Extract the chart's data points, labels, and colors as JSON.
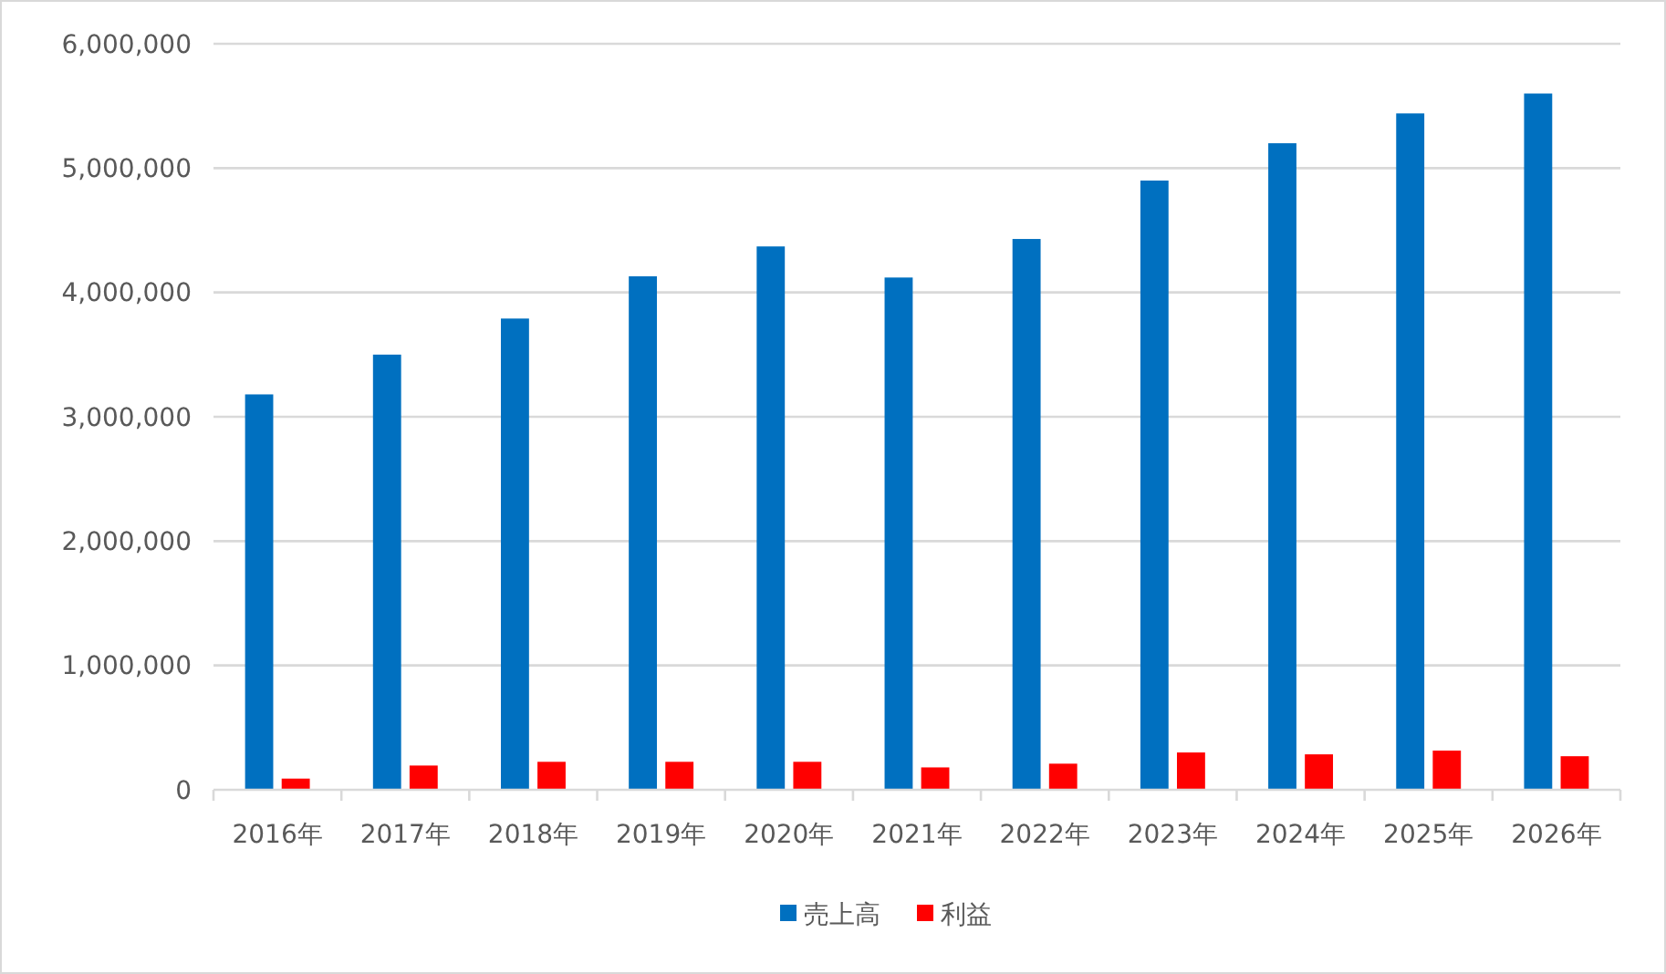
{
  "chart_data": {
    "type": "bar",
    "categories": [
      "2016年",
      "2017年",
      "2018年",
      "2019年",
      "2020年",
      "2021年",
      "2022年",
      "2023年",
      "2024年",
      "2025年",
      "2026年"
    ],
    "series": [
      {
        "name": "売上高",
        "color": "#0070c0",
        "values": [
          3180000,
          3500000,
          3790000,
          4130000,
          4370000,
          4120000,
          4430000,
          4900000,
          5200000,
          5440000,
          5600000
        ]
      },
      {
        "name": "利益",
        "color": "#ff0000",
        "values": [
          90000,
          195000,
          225000,
          225000,
          225000,
          180000,
          210000,
          300000,
          285000,
          315000,
          270000
        ]
      }
    ],
    "ylim": [
      0,
      6000000
    ],
    "yticks": [
      {
        "value": 0,
        "label": "0"
      },
      {
        "value": 1000000,
        "label": "1,000,000"
      },
      {
        "value": 2000000,
        "label": "2,000,000"
      },
      {
        "value": 3000000,
        "label": "3,000,000"
      },
      {
        "value": 4000000,
        "label": "4,000,000"
      },
      {
        "value": 5000000,
        "label": "5,000,000"
      },
      {
        "value": 6000000,
        "label": "6,000,000"
      }
    ],
    "grid": "y",
    "legend": "bottom"
  }
}
